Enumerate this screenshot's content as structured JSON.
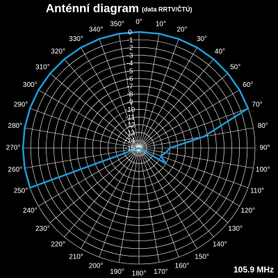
{
  "chart_data": {
    "type": "polar",
    "title": "Anténní diagram",
    "subtitle": "(data RRTV/ČTÚ)",
    "annotation": "105.9 MHz",
    "color": "#1e9bd7",
    "theta": [
      0,
      10,
      20,
      30,
      40,
      50,
      60,
      70,
      80,
      90,
      100,
      110,
      120,
      130,
      140,
      150,
      160,
      170,
      180,
      190,
      200,
      210,
      220,
      230,
      240,
      250,
      260,
      270,
      280,
      290,
      300,
      310,
      320,
      330,
      340,
      350
    ],
    "values": [
      0,
      0,
      0,
      0,
      0,
      0,
      0,
      0,
      -6.5,
      -11,
      -11.5,
      -12,
      -11,
      -15,
      -15,
      -15,
      -15,
      -15,
      -15,
      -15,
      -15,
      -15,
      -15,
      -15,
      -15,
      0,
      0,
      0,
      0,
      0,
      0,
      0,
      0,
      0,
      0,
      0
    ],
    "rlim": [
      -15,
      0
    ],
    "rticks": [
      0,
      -1,
      -2,
      -3,
      -4,
      -5,
      -6,
      -7,
      -8,
      -9,
      -10,
      -11,
      -12,
      -13,
      -14,
      -15
    ],
    "thetaticks": [
      {
        "value": 0,
        "label": "0°"
      },
      {
        "value": 10,
        "label": "10°"
      },
      {
        "value": 20,
        "label": "20°"
      },
      {
        "value": 30,
        "label": "30°"
      },
      {
        "value": 40,
        "label": "40°"
      },
      {
        "value": 50,
        "label": "50°"
      },
      {
        "value": 60,
        "label": "60°"
      },
      {
        "value": 70,
        "label": "70°"
      },
      {
        "value": 80,
        "label": "80°"
      },
      {
        "value": 90,
        "label": "90°"
      },
      {
        "value": 100,
        "label": "100°"
      },
      {
        "value": 110,
        "label": "110°"
      },
      {
        "value": 120,
        "label": "120°"
      },
      {
        "value": 130,
        "label": "130°"
      },
      {
        "value": 140,
        "label": "140°"
      },
      {
        "value": 150,
        "label": "150°"
      },
      {
        "value": 160,
        "label": "160°"
      },
      {
        "value": 170,
        "label": "170°"
      },
      {
        "value": 180,
        "label": "180°"
      },
      {
        "value": 190,
        "label": "190°"
      },
      {
        "value": 200,
        "label": "200°"
      },
      {
        "value": 210,
        "label": "210°"
      },
      {
        "value": 220,
        "label": "220°"
      },
      {
        "value": 230,
        "label": "230°"
      },
      {
        "value": 240,
        "label": "240°"
      },
      {
        "value": 250,
        "label": "250°"
      },
      {
        "value": 260,
        "label": "260°"
      },
      {
        "value": 270,
        "label": "270°"
      },
      {
        "value": 280,
        "label": "280°"
      },
      {
        "value": 290,
        "label": "290°"
      },
      {
        "value": 300,
        "label": "300°"
      },
      {
        "value": 310,
        "label": "310°"
      },
      {
        "value": 320,
        "label": "320°"
      },
      {
        "value": 330,
        "label": "330°"
      },
      {
        "value": 340,
        "label": "340°"
      },
      {
        "value": 350,
        "label": "350°"
      }
    ],
    "grid": true
  }
}
